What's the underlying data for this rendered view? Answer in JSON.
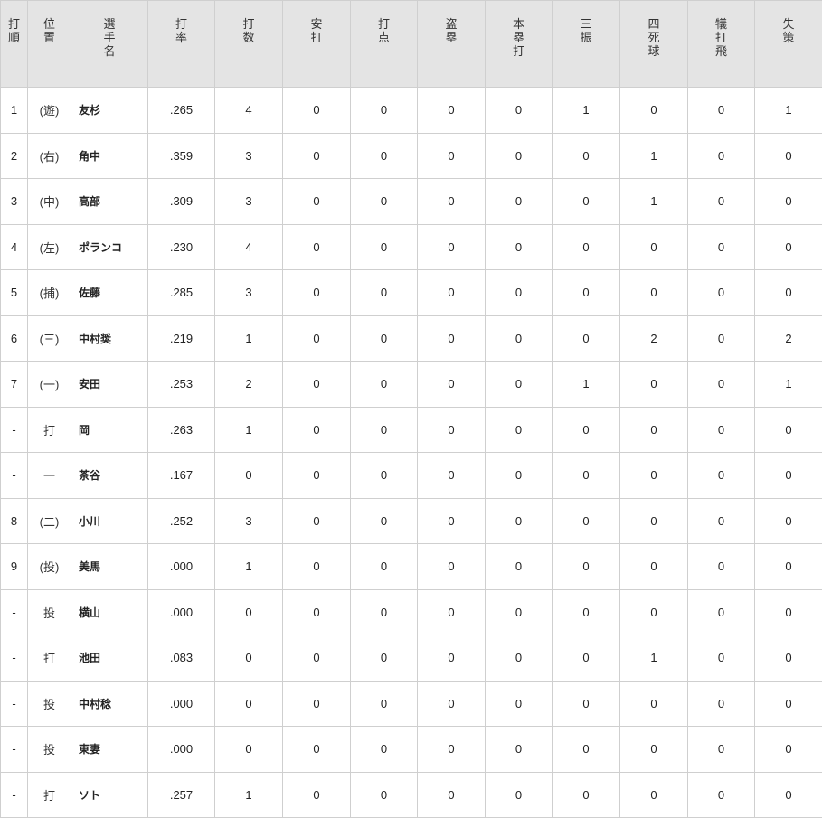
{
  "headers": [
    "打順",
    "位置",
    "選手名",
    "打率",
    "打数",
    "安打",
    "打点",
    "盗塁",
    "本塁打",
    "三振",
    "四死球",
    "犠打飛",
    "失策"
  ],
  "rows": [
    [
      "1",
      "(遊)",
      "友杉",
      ".265",
      "4",
      "0",
      "0",
      "0",
      "0",
      "1",
      "0",
      "0",
      "1"
    ],
    [
      "2",
      "(右)",
      "角中",
      ".359",
      "3",
      "0",
      "0",
      "0",
      "0",
      "0",
      "1",
      "0",
      "0"
    ],
    [
      "3",
      "(中)",
      "高部",
      ".309",
      "3",
      "0",
      "0",
      "0",
      "0",
      "0",
      "1",
      "0",
      "0"
    ],
    [
      "4",
      "(左)",
      "ポランコ",
      ".230",
      "4",
      "0",
      "0",
      "0",
      "0",
      "0",
      "0",
      "0",
      "0"
    ],
    [
      "5",
      "(捕)",
      "佐藤",
      ".285",
      "3",
      "0",
      "0",
      "0",
      "0",
      "0",
      "0",
      "0",
      "0"
    ],
    [
      "6",
      "(三)",
      "中村奨",
      ".219",
      "1",
      "0",
      "0",
      "0",
      "0",
      "0",
      "2",
      "0",
      "2"
    ],
    [
      "7",
      "(一)",
      "安田",
      ".253",
      "2",
      "0",
      "0",
      "0",
      "0",
      "1",
      "0",
      "0",
      "1"
    ],
    [
      "-",
      "打",
      "岡",
      ".263",
      "1",
      "0",
      "0",
      "0",
      "0",
      "0",
      "0",
      "0",
      "0"
    ],
    [
      "-",
      "一",
      "茶谷",
      ".167",
      "0",
      "0",
      "0",
      "0",
      "0",
      "0",
      "0",
      "0",
      "0"
    ],
    [
      "8",
      "(二)",
      "小川",
      ".252",
      "3",
      "0",
      "0",
      "0",
      "0",
      "0",
      "0",
      "0",
      "0"
    ],
    [
      "9",
      "(投)",
      "美馬",
      ".000",
      "1",
      "0",
      "0",
      "0",
      "0",
      "0",
      "0",
      "0",
      "0"
    ],
    [
      "-",
      "投",
      "横山",
      ".000",
      "0",
      "0",
      "0",
      "0",
      "0",
      "0",
      "0",
      "0",
      "0"
    ],
    [
      "-",
      "打",
      "池田",
      ".083",
      "0",
      "0",
      "0",
      "0",
      "0",
      "0",
      "1",
      "0",
      "0"
    ],
    [
      "-",
      "投",
      "中村稔",
      ".000",
      "0",
      "0",
      "0",
      "0",
      "0",
      "0",
      "0",
      "0",
      "0"
    ],
    [
      "-",
      "投",
      "東妻",
      ".000",
      "0",
      "0",
      "0",
      "0",
      "0",
      "0",
      "0",
      "0",
      "0"
    ],
    [
      "-",
      "打",
      "ソト",
      ".257",
      "1",
      "0",
      "0",
      "0",
      "0",
      "0",
      "0",
      "0",
      "0"
    ]
  ]
}
